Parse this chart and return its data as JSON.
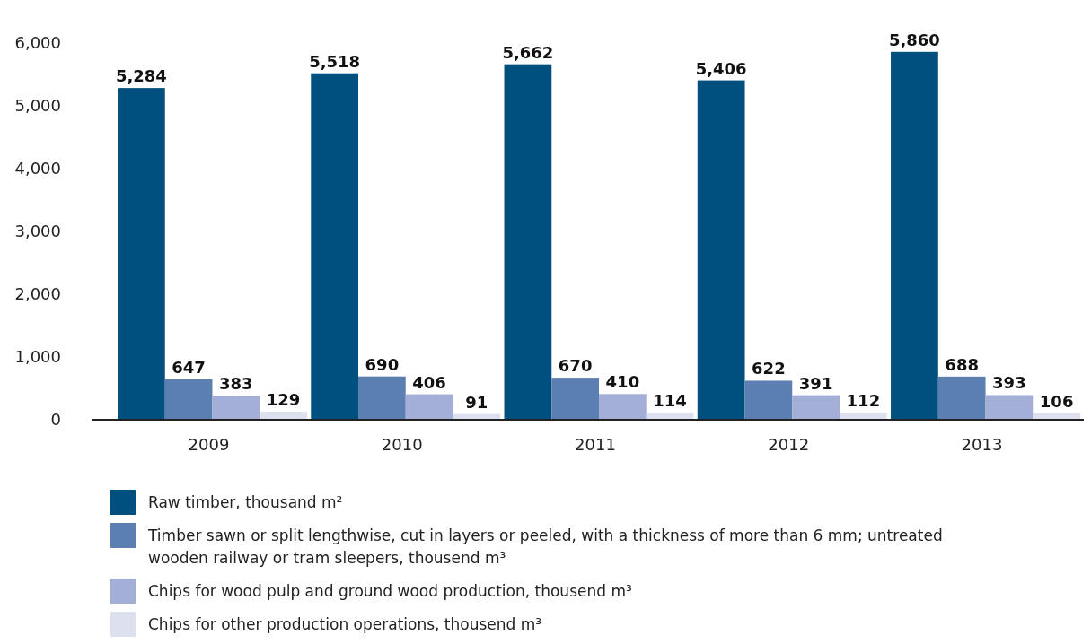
{
  "chart_data": {
    "type": "bar",
    "categories": [
      "2009",
      "2010",
      "2011",
      "2012",
      "2013"
    ],
    "series": [
      {
        "name": "Raw timber, thousand m²",
        "color": "#00507f",
        "values": [
          5284,
          5518,
          5662,
          5406,
          5860
        ],
        "value_labels": [
          "5,284",
          "5,518",
          "5,662",
          "5,406",
          "5,860"
        ]
      },
      {
        "name": "Timber sawn or split lengthwise, cut in layers or peeled, with a thickness of more than 6 mm; untreated wooden railway or tram sleepers, thousend m³",
        "color": "#5b7fb0",
        "values": [
          647,
          690,
          670,
          622,
          688
        ],
        "value_labels": [
          "647",
          "690",
          "670",
          "622",
          "688"
        ]
      },
      {
        "name": "Chips for wood pulp and ground wood production, thousend m³",
        "color": "#a3afd6",
        "values": [
          383,
          406,
          410,
          391,
          393
        ],
        "value_labels": [
          "383",
          "406",
          "410",
          "391",
          "393"
        ]
      },
      {
        "name": "Chips for other production operations, thousend m³",
        "color": "#dde0ef",
        "values": [
          129,
          91,
          114,
          112,
          106
        ],
        "value_labels": [
          "129",
          "91",
          "114",
          "112",
          "106"
        ]
      }
    ],
    "ylim": [
      0,
      6000
    ],
    "yticks": [
      {
        "value": 0,
        "label": "0"
      },
      {
        "value": 1000,
        "label": "1,000"
      },
      {
        "value": 2000,
        "label": "2,000"
      },
      {
        "value": 3000,
        "label": "3,000"
      },
      {
        "value": 4000,
        "label": "4,000"
      },
      {
        "value": 5000,
        "label": "5,000"
      },
      {
        "value": 6000,
        "label": "6,000"
      }
    ],
    "grid": false,
    "legend": "bottom"
  }
}
